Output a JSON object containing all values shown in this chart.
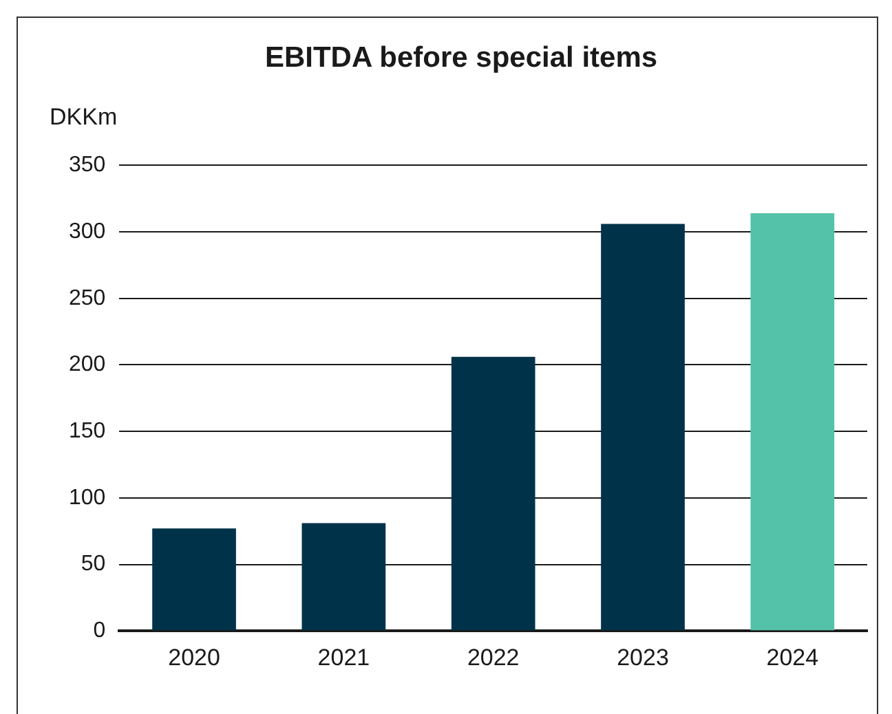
{
  "chart_data": {
    "type": "bar",
    "title": "EBITDA before special items",
    "ylabel": "DKKm",
    "categories": [
      "2020",
      "2021",
      "2022",
      "2023",
      "2024"
    ],
    "values": [
      77,
      81,
      206,
      306,
      314
    ],
    "colors": [
      "#003349",
      "#003349",
      "#003349",
      "#003349",
      "#54c2a9"
    ],
    "ylim": [
      0,
      350
    ],
    "yticks": [
      0,
      50,
      100,
      150,
      200,
      250,
      300,
      350
    ],
    "grid": "y"
  }
}
